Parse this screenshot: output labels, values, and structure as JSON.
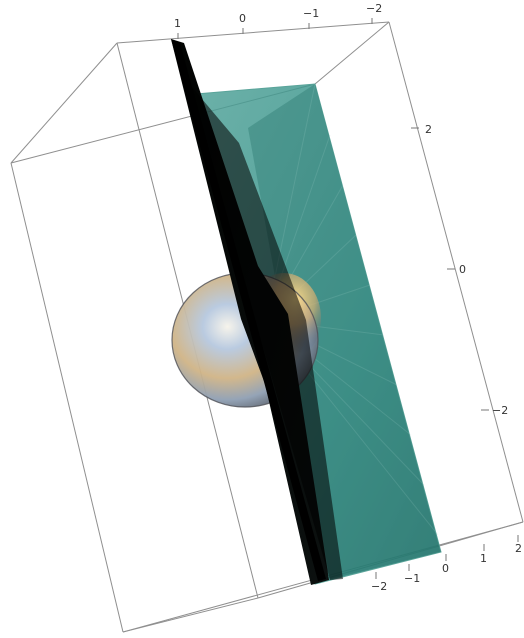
{
  "plot": {
    "colors": {
      "background": "#ffffff",
      "box_edge": "#8f8f8f",
      "plane": "#2f8f86",
      "plane_edge": "#5aa49a",
      "dark_plane": "#050706",
      "sphere_light": "#b6c8df",
      "sphere_mid": "#8f9fb3",
      "sphere_dark": "#5a5e66"
    },
    "axes": {
      "top": {
        "ticks": [
          "1",
          "0",
          "−1",
          "−2"
        ]
      },
      "right": {
        "ticks": [
          "2",
          "0",
          "−2"
        ]
      },
      "bottom": {
        "ticks": [
          "−2",
          "−1",
          "0",
          "1",
          "2"
        ]
      }
    }
  }
}
